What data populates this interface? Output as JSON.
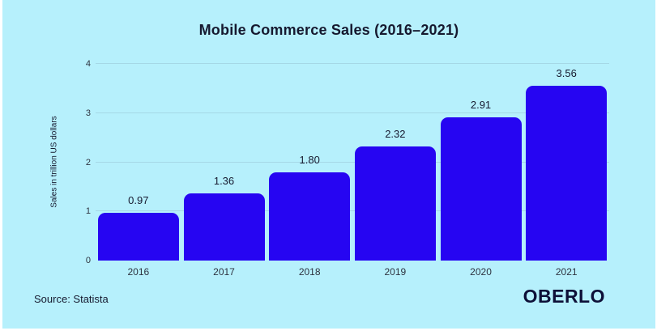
{
  "title": "Mobile Commerce Sales (2016–2021)",
  "footer": {
    "source": "Source: Statista",
    "logo": "OBERLO"
  },
  "colors": {
    "card_background": "#B6F0FC",
    "bar": "#2605F2",
    "text": "#16192F",
    "tick_text": "#2E3340",
    "gridline": "#A5D8E6",
    "logo": "#0E1038"
  },
  "chart_data": {
    "type": "bar",
    "title": "Mobile Commerce Sales (2016–2021)",
    "categories": [
      "2016",
      "2017",
      "2018",
      "2019",
      "2020",
      "2021"
    ],
    "values": [
      0.97,
      1.36,
      1.8,
      2.32,
      2.91,
      3.56
    ],
    "value_labels": [
      "0.97",
      "1.36",
      "1.80",
      "2.32",
      "2.91",
      "3.56"
    ],
    "xlabel": "",
    "ylabel": "Sales in trillion US dollars",
    "ylim": [
      0,
      4
    ],
    "yticks": [
      0,
      1,
      2,
      3,
      4
    ],
    "grid": true,
    "legend": false
  }
}
